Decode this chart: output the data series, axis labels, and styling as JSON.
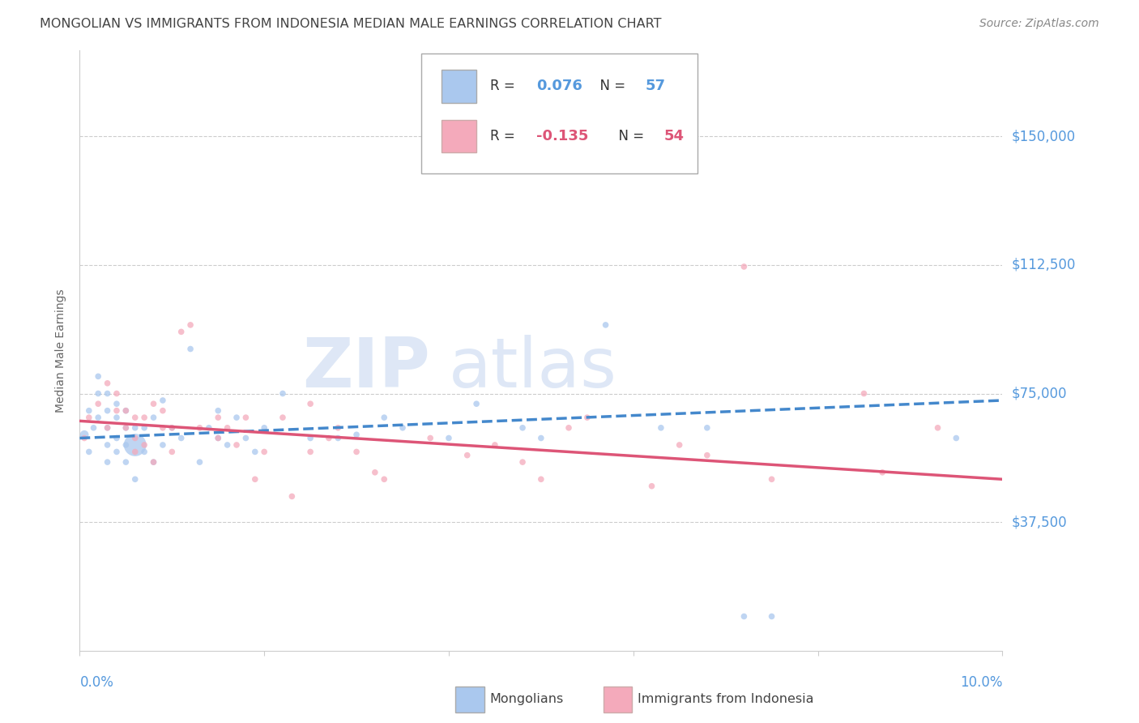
{
  "title": "MONGOLIAN VS IMMIGRANTS FROM INDONESIA MEDIAN MALE EARNINGS CORRELATION CHART",
  "source": "Source: ZipAtlas.com",
  "ylabel": "Median Male Earnings",
  "yticks": [
    0,
    37500,
    75000,
    112500,
    150000
  ],
  "ytick_labels": [
    "",
    "$37,500",
    "$75,000",
    "$112,500",
    "$150,000"
  ],
  "xmin": 0.0,
  "xmax": 0.1,
  "ymin": 0,
  "ymax": 175000,
  "blue_color": "#aac8ee",
  "pink_color": "#f4aabb",
  "trend_blue_color": "#4488cc",
  "trend_pink_color": "#dd5577",
  "title_color": "#444444",
  "axis_label_color": "#5599dd",
  "watermark_color": "#c8d8f0",
  "grid_color": "#cccccc",
  "background_color": "#ffffff",
  "blue_line_x": [
    0.0,
    0.1
  ],
  "blue_line_y": [
    62000,
    73000
  ],
  "pink_line_x": [
    0.0,
    0.1
  ],
  "pink_line_y": [
    67000,
    50000
  ],
  "blue_scatter_x": [
    0.0005,
    0.001,
    0.001,
    0.0015,
    0.002,
    0.002,
    0.002,
    0.003,
    0.003,
    0.003,
    0.003,
    0.003,
    0.004,
    0.004,
    0.004,
    0.004,
    0.005,
    0.005,
    0.005,
    0.005,
    0.006,
    0.006,
    0.006,
    0.007,
    0.007,
    0.008,
    0.008,
    0.009,
    0.009,
    0.01,
    0.011,
    0.012,
    0.013,
    0.014,
    0.015,
    0.015,
    0.016,
    0.017,
    0.018,
    0.019,
    0.02,
    0.022,
    0.025,
    0.028,
    0.03,
    0.033,
    0.035,
    0.04,
    0.043,
    0.048,
    0.05,
    0.057,
    0.063,
    0.068,
    0.075,
    0.072,
    0.095
  ],
  "blue_scatter_y": [
    63000,
    58000,
    70000,
    65000,
    75000,
    68000,
    80000,
    60000,
    65000,
    70000,
    75000,
    55000,
    62000,
    68000,
    58000,
    72000,
    60000,
    65000,
    55000,
    70000,
    60000,
    65000,
    50000,
    65000,
    58000,
    55000,
    68000,
    60000,
    73000,
    65000,
    62000,
    88000,
    55000,
    65000,
    62000,
    70000,
    60000,
    68000,
    62000,
    58000,
    65000,
    75000,
    62000,
    62000,
    63000,
    68000,
    65000,
    62000,
    72000,
    65000,
    62000,
    95000,
    65000,
    65000,
    10000,
    10000,
    62000
  ],
  "blue_scatter_size": [
    60,
    30,
    30,
    30,
    30,
    30,
    30,
    30,
    30,
    30,
    30,
    30,
    30,
    30,
    30,
    30,
    30,
    30,
    30,
    30,
    400,
    30,
    30,
    30,
    30,
    30,
    30,
    30,
    30,
    30,
    30,
    30,
    30,
    30,
    30,
    30,
    30,
    30,
    30,
    30,
    30,
    30,
    30,
    30,
    30,
    30,
    30,
    30,
    30,
    30,
    30,
    30,
    30,
    30,
    30,
    30,
    30
  ],
  "pink_scatter_x": [
    0.0005,
    0.001,
    0.002,
    0.003,
    0.003,
    0.004,
    0.004,
    0.005,
    0.005,
    0.006,
    0.006,
    0.006,
    0.007,
    0.007,
    0.008,
    0.008,
    0.009,
    0.009,
    0.01,
    0.01,
    0.011,
    0.012,
    0.013,
    0.015,
    0.015,
    0.016,
    0.017,
    0.018,
    0.019,
    0.02,
    0.022,
    0.023,
    0.025,
    0.025,
    0.027,
    0.028,
    0.03,
    0.032,
    0.033,
    0.038,
    0.042,
    0.045,
    0.048,
    0.05,
    0.053,
    0.055,
    0.062,
    0.065,
    0.068,
    0.072,
    0.075,
    0.085,
    0.087,
    0.093
  ],
  "pink_scatter_y": [
    62000,
    68000,
    72000,
    65000,
    78000,
    70000,
    75000,
    65000,
    70000,
    62000,
    68000,
    58000,
    60000,
    68000,
    55000,
    72000,
    65000,
    70000,
    58000,
    65000,
    93000,
    95000,
    65000,
    62000,
    68000,
    65000,
    60000,
    68000,
    50000,
    58000,
    68000,
    45000,
    58000,
    72000,
    62000,
    65000,
    58000,
    52000,
    50000,
    62000,
    57000,
    60000,
    55000,
    50000,
    65000,
    68000,
    48000,
    60000,
    57000,
    112000,
    50000,
    75000,
    52000,
    65000
  ],
  "pink_scatter_size": [
    30,
    30,
    30,
    30,
    30,
    30,
    30,
    30,
    30,
    30,
    30,
    30,
    30,
    30,
    30,
    30,
    30,
    30,
    30,
    30,
    30,
    30,
    30,
    30,
    30,
    30,
    30,
    30,
    30,
    30,
    30,
    30,
    30,
    30,
    30,
    30,
    30,
    30,
    30,
    30,
    30,
    30,
    30,
    30,
    30,
    30,
    30,
    30,
    30,
    30,
    30,
    30,
    30,
    30
  ]
}
